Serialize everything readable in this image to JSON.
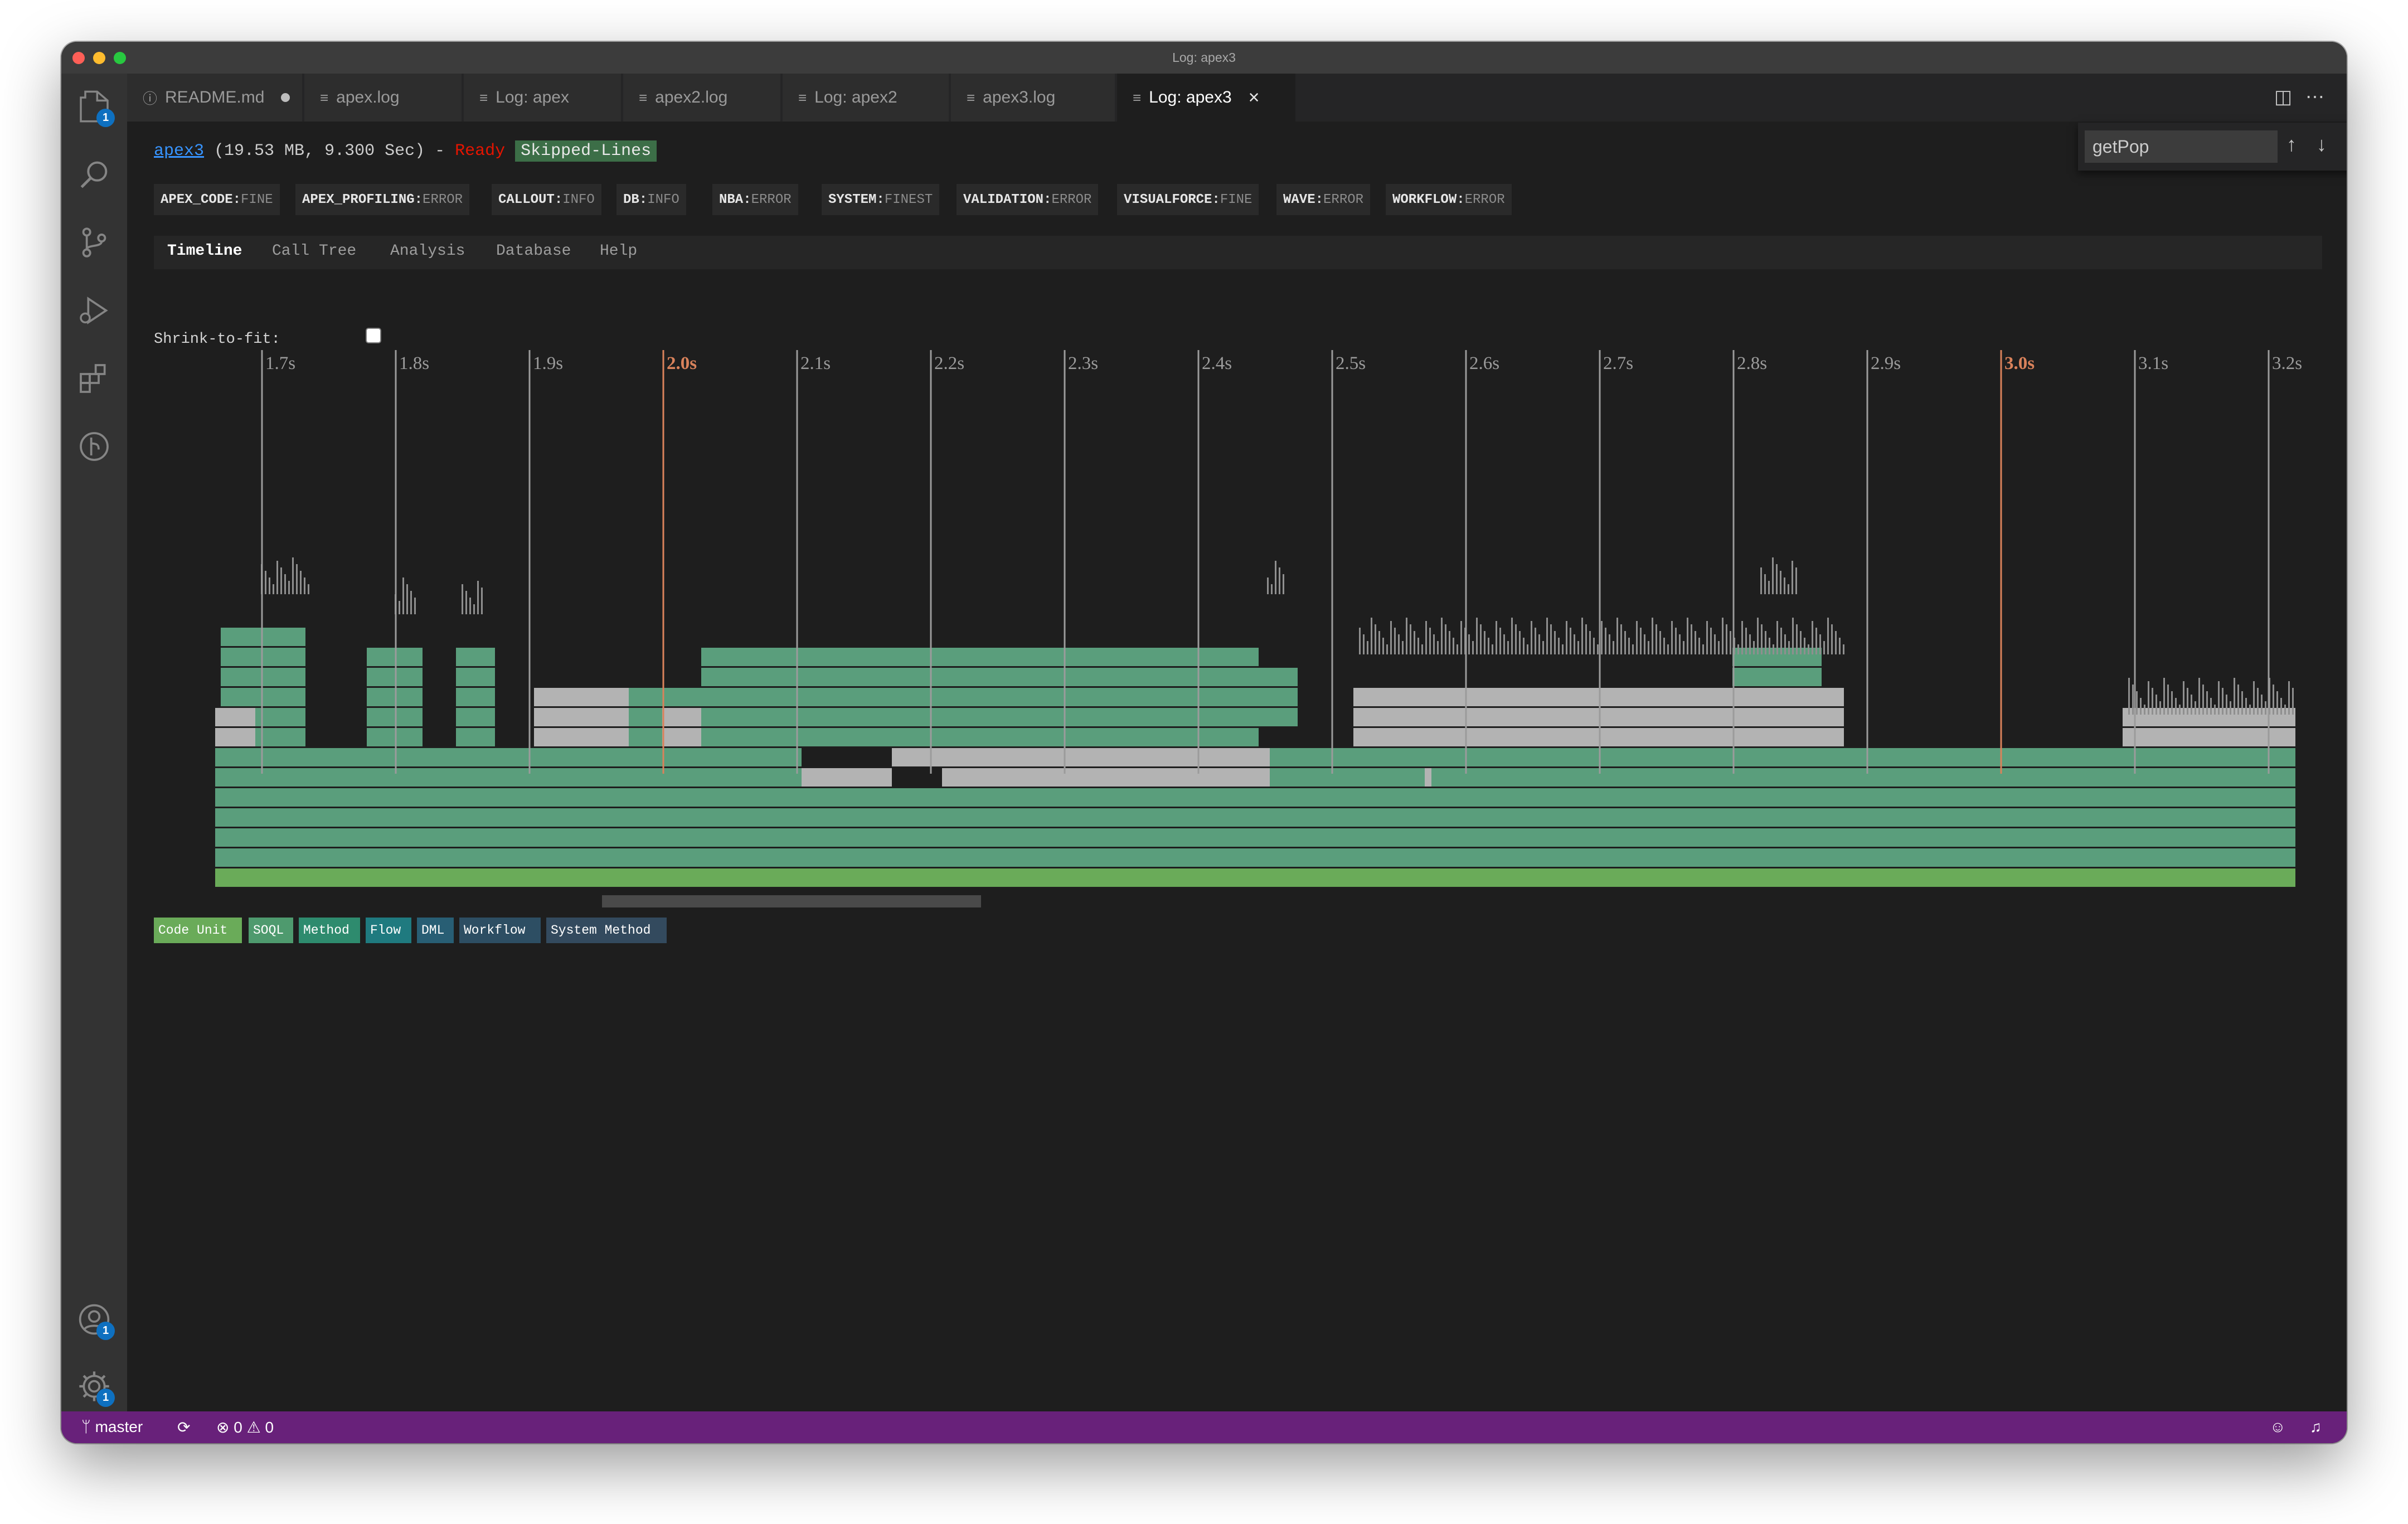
{
  "window": {
    "title": "Log: apex3"
  },
  "activity_bar": {
    "explorer_badge": "1",
    "accounts_badge": "1",
    "manage_badge": "1"
  },
  "tabs": [
    {
      "label": "README.md"
    },
    {
      "label": "apex.log"
    },
    {
      "label": "Log: apex"
    },
    {
      "label": "apex2.log"
    },
    {
      "label": "Log: apex2"
    },
    {
      "label": "apex3.log"
    },
    {
      "label": "Log: apex3"
    }
  ],
  "header": {
    "log_name": "apex3",
    "details": "(19.53 MB, 9.300 Sec) - ",
    "status": "Ready",
    "badge": "Skipped-Lines"
  },
  "log_levels": [
    {
      "name": "APEX_CODE:",
      "level": "FINE"
    },
    {
      "name": "APEX_PROFILING:",
      "level": "ERROR"
    },
    {
      "name": "CALLOUT:",
      "level": "INFO"
    },
    {
      "name": "DB:",
      "level": "INFO"
    },
    {
      "name": "NBA:",
      "level": "ERROR"
    },
    {
      "name": "SYSTEM:",
      "level": "FINEST"
    },
    {
      "name": "VALIDATION:",
      "level": "ERROR"
    },
    {
      "name": "VISUALFORCE:",
      "level": "FINE"
    },
    {
      "name": "WAVE:",
      "level": "ERROR"
    },
    {
      "name": "WORKFLOW:",
      "level": "ERROR"
    }
  ],
  "nav_tabs": [
    "Timeline",
    "Call Tree",
    "Analysis",
    "Database",
    "Help"
  ],
  "shrink_label": "Shrink-to-fit:",
  "timeline": {
    "ticks": [
      "1.7s",
      "1.8s",
      "1.9s",
      "2.0s",
      "2.1s",
      "2.2s",
      "2.3s",
      "2.4s",
      "2.5s",
      "2.6s",
      "2.7s",
      "2.8s",
      "2.9s",
      "3.0s",
      "3.1s",
      "3.2s"
    ],
    "highlighted_ticks": [
      "2.0s",
      "3.0s"
    ],
    "tick_color": "#9b9b9b",
    "highlight_color": "#d9825b"
  },
  "legend": [
    {
      "label": "Code Unit",
      "color": "#6aab59"
    },
    {
      "label": "SOQL",
      "color": "#4e9a6e"
    },
    {
      "label": "Method",
      "color": "#2e8b6e"
    },
    {
      "label": "Flow",
      "color": "#1f7a7f"
    },
    {
      "label": "DML",
      "color": "#285e74"
    },
    {
      "label": "Workflow",
      "color": "#2d4e63"
    },
    {
      "label": "System Method",
      "color": "#334a5e"
    }
  ],
  "find": {
    "value": "getPop"
  },
  "status_bar": {
    "branch": "master",
    "errors": "0",
    "warnings": "0"
  },
  "colors": {
    "status_bar": "#68217a",
    "accent": "#0e70c0",
    "method": "#5a9e7c",
    "system": "#b3b3b3"
  }
}
